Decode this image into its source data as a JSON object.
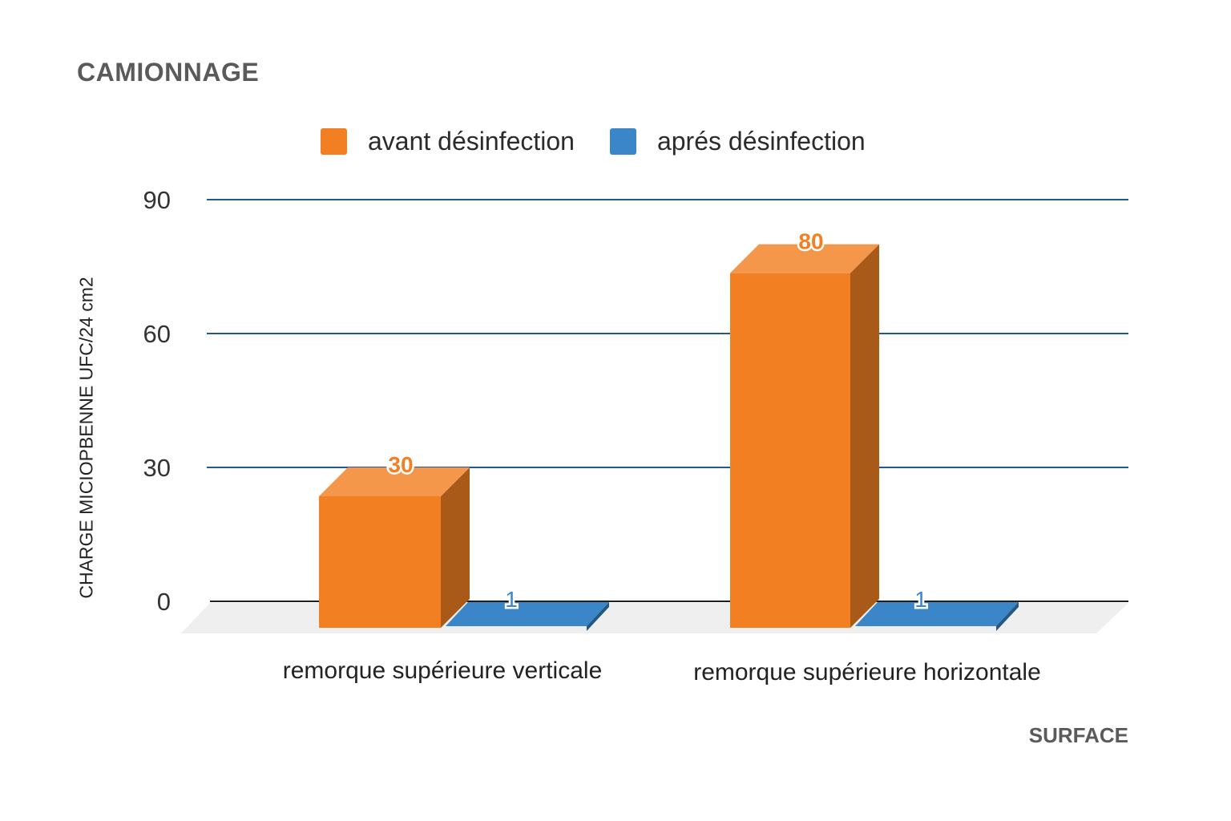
{
  "chart_data": {
    "type": "bar",
    "title": "CAMIONNAGE",
    "xlabel": "SURFACE",
    "ylabel": "CHARGE MICIOPBENNE UFC/24 cm2",
    "categories": [
      "remorque supérieure verticale",
      "remorque supérieure horizontale"
    ],
    "series": [
      {
        "name": "avant désinfection",
        "values": [
          30,
          80
        ],
        "color": "#f28023"
      },
      {
        "name": "aprés désinfection",
        "values": [
          1,
          1
        ],
        "color": "#3a86c8"
      }
    ],
    "ylim": [
      0,
      90
    ],
    "yticks": [
      0,
      30,
      60,
      90
    ],
    "grid": true,
    "legend_position": "top"
  }
}
